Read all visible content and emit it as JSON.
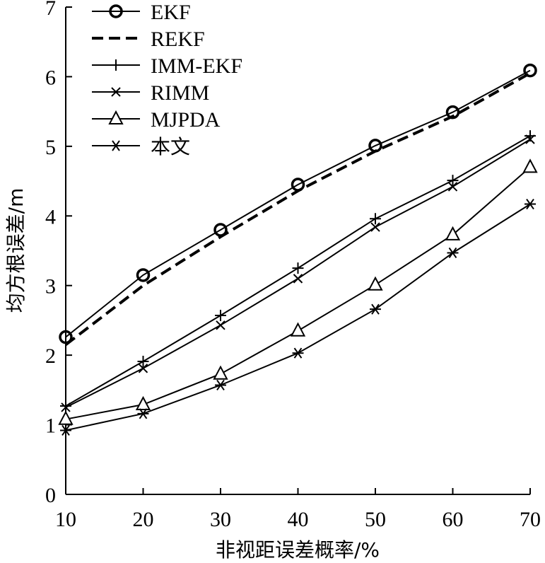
{
  "chart_data": {
    "type": "line",
    "title": "",
    "xlabel": "非视距误差概率/%",
    "ylabel": "均方根误差/m",
    "x": [
      10,
      20,
      30,
      40,
      50,
      60,
      70
    ],
    "xlim": [
      10,
      70
    ],
    "ylim": [
      0,
      7
    ],
    "xticks": [
      "10",
      "20",
      "30",
      "40",
      "50",
      "60",
      "70"
    ],
    "yticks": [
      "0",
      "1",
      "2",
      "3",
      "4",
      "5",
      "6",
      "7"
    ],
    "grid": false,
    "legend_position": "top-left",
    "series": [
      {
        "name": "EKF",
        "marker": "circle",
        "dash": "solid",
        "values": [
          2.26,
          3.15,
          3.8,
          4.45,
          5.01,
          5.49,
          6.09
        ]
      },
      {
        "name": "REKF",
        "marker": "none",
        "dash": "dashed",
        "values": [
          2.15,
          3.0,
          3.7,
          4.36,
          4.93,
          5.43,
          6.05
        ]
      },
      {
        "name": "IMM-EKF",
        "marker": "plus",
        "dash": "solid",
        "values": [
          1.27,
          1.91,
          2.57,
          3.25,
          3.96,
          4.51,
          5.15
        ]
      },
      {
        "name": "RIMM",
        "marker": "x",
        "dash": "solid",
        "values": [
          1.25,
          1.81,
          2.43,
          3.1,
          3.84,
          4.42,
          5.1
        ]
      },
      {
        "name": "MJPDA",
        "marker": "triangle",
        "dash": "solid",
        "values": [
          1.08,
          1.29,
          1.73,
          2.35,
          3.01,
          3.73,
          4.7
        ]
      },
      {
        "name": "本文",
        "marker": "star",
        "dash": "solid",
        "values": [
          0.92,
          1.16,
          1.57,
          2.03,
          2.66,
          3.47,
          4.17
        ]
      }
    ]
  }
}
